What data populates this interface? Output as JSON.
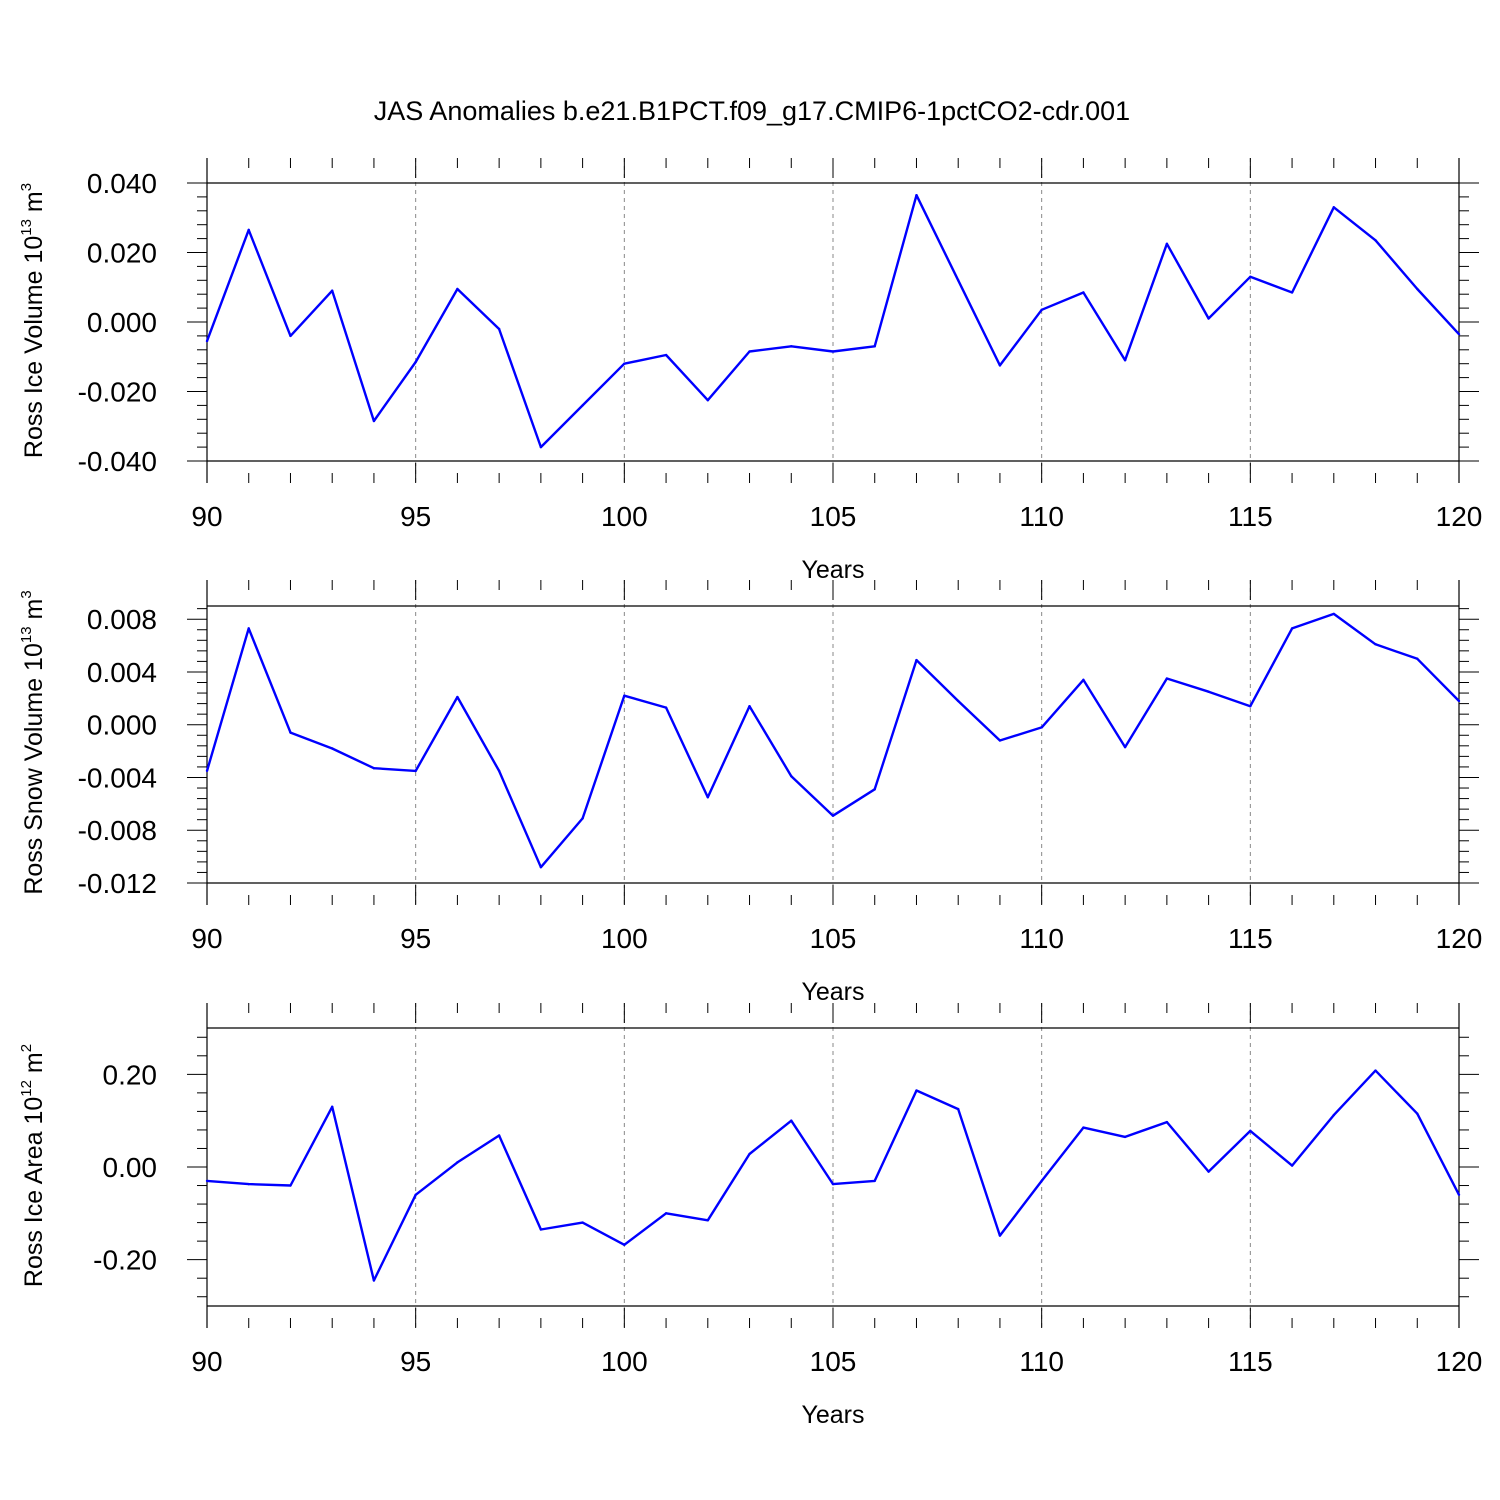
{
  "figure": {
    "title": "JAS Anomalies b.e21.B1PCT.f09_g17.CMIP6-1pctCO2-cdr.001",
    "line_color": "#0000ff"
  },
  "chart_data": [
    {
      "type": "line",
      "xlabel": "Years",
      "ylabel_main": "Ross Ice Volume 10",
      "ylabel_sup": "13",
      "ylabel_unit": " m",
      "ylabel_unit_sup": "3",
      "xlim": [
        90,
        120
      ],
      "ylim": [
        -0.04,
        0.04
      ],
      "xticks": [
        90,
        95,
        100,
        105,
        110,
        115,
        120
      ],
      "xtick_labels": [
        "90",
        "95",
        "100",
        "105",
        "110",
        "115",
        "120"
      ],
      "yticks": [
        0.04,
        0.02,
        0.0,
        -0.02,
        -0.04
      ],
      "ytick_labels": [
        "0.040",
        "0.020",
        "0.000",
        "-0.020",
        "-0.040"
      ],
      "grid": "dashed vertical lines at major x ticks",
      "x": [
        90,
        91,
        92,
        93,
        94,
        95,
        96,
        97,
        98,
        99,
        100,
        101,
        102,
        103,
        104,
        105,
        106,
        107,
        108,
        109,
        110,
        111,
        112,
        113,
        114,
        115,
        116,
        117,
        118,
        119,
        120
      ],
      "values": [
        -0.0055,
        0.0265,
        -0.004,
        0.009,
        -0.0285,
        -0.0115,
        0.0095,
        -0.002,
        -0.036,
        -0.024,
        -0.012,
        -0.0095,
        -0.0225,
        -0.0085,
        -0.007,
        -0.0085,
        -0.007,
        0.0365,
        0.012,
        -0.0125,
        0.0035,
        0.0085,
        -0.011,
        0.0225,
        0.001,
        0.013,
        0.0085,
        0.033,
        0.0235,
        0.0095,
        -0.0035
      ]
    },
    {
      "type": "line",
      "xlabel": "Years",
      "ylabel_main": "Ross Snow Volume 10",
      "ylabel_sup": "13",
      "ylabel_unit": " m",
      "ylabel_unit_sup": "3",
      "xlim": [
        90,
        120
      ],
      "ylim": [
        -0.012,
        0.009
      ],
      "xticks": [
        90,
        95,
        100,
        105,
        110,
        115,
        120
      ],
      "xtick_labels": [
        "90",
        "95",
        "100",
        "105",
        "110",
        "115",
        "120"
      ],
      "yticks": [
        0.008,
        0.004,
        0.0,
        -0.004,
        -0.008,
        -0.012
      ],
      "ytick_labels": [
        "0.008",
        "0.004",
        "0.000",
        "-0.004",
        "-0.008",
        "-0.012"
      ],
      "grid": "dashed vertical lines at major x ticks",
      "x": [
        90,
        91,
        92,
        93,
        94,
        95,
        96,
        97,
        98,
        99,
        100,
        101,
        102,
        103,
        104,
        105,
        106,
        107,
        108,
        109,
        110,
        111,
        112,
        113,
        114,
        115,
        116,
        117,
        118,
        119,
        120
      ],
      "values": [
        -0.0035,
        0.0073,
        -0.0006,
        -0.0018,
        -0.0033,
        -0.0035,
        0.0021,
        -0.0035,
        -0.0108,
        -0.0071,
        0.0022,
        0.0013,
        -0.0055,
        0.0014,
        -0.0039,
        -0.0069,
        -0.0049,
        0.0049,
        0.0018,
        -0.0012,
        -0.0002,
        0.0034,
        -0.0017,
        0.0035,
        0.0025,
        0.0014,
        0.0073,
        0.0084,
        0.0061,
        0.005,
        0.0018
      ]
    },
    {
      "type": "line",
      "xlabel": "Years",
      "ylabel_main": "Ross Ice Area 10",
      "ylabel_sup": "12",
      "ylabel_unit": " m",
      "ylabel_unit_sup": "2",
      "xlim": [
        90,
        120
      ],
      "ylim": [
        -0.3,
        0.3
      ],
      "xticks": [
        90,
        95,
        100,
        105,
        110,
        115,
        120
      ],
      "xtick_labels": [
        "90",
        "95",
        "100",
        "105",
        "110",
        "115",
        "120"
      ],
      "yticks": [
        0.2,
        0.0,
        -0.2
      ],
      "ytick_labels": [
        "0.20",
        "0.00",
        "-0.20"
      ],
      "grid": "dashed vertical lines at major x ticks",
      "x": [
        90,
        91,
        92,
        93,
        94,
        95,
        96,
        97,
        98,
        99,
        100,
        101,
        102,
        103,
        104,
        105,
        106,
        107,
        108,
        109,
        110,
        111,
        112,
        113,
        114,
        115,
        116,
        117,
        118,
        119,
        120
      ],
      "values": [
        -0.03,
        -0.037,
        -0.04,
        0.13,
        -0.245,
        -0.06,
        0.01,
        0.068,
        -0.135,
        -0.12,
        -0.168,
        -0.1,
        -0.115,
        0.028,
        0.1,
        -0.037,
        -0.03,
        0.165,
        0.125,
        -0.148,
        -0.03,
        0.085,
        0.065,
        0.097,
        -0.01,
        0.078,
        0.003,
        0.112,
        0.208,
        0.115,
        -0.06
      ]
    }
  ]
}
